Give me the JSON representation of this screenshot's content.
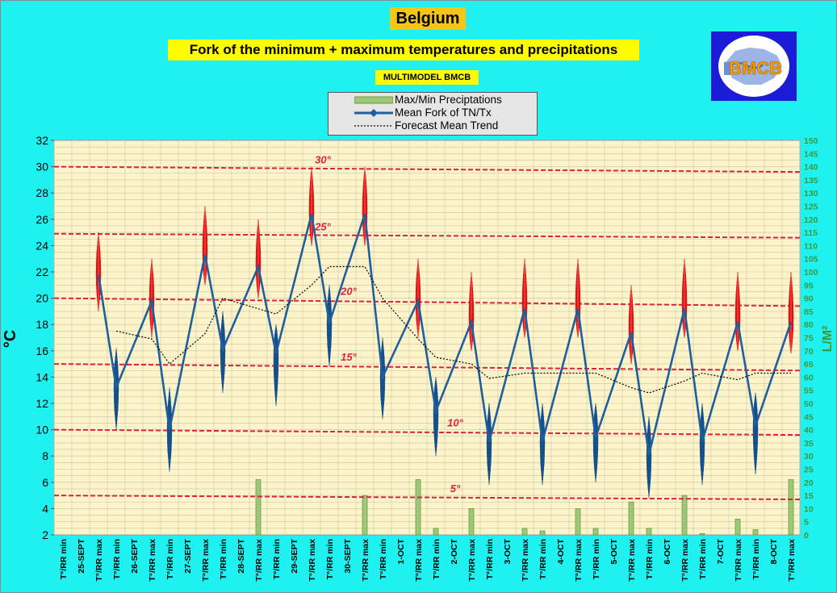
{
  "title": "Belgium",
  "subtitle": "Fork of the minimum + maximum temperatures and precipitations",
  "model_label": "MULTIMODEL BMCB",
  "logo_text": "BMCB",
  "legend": {
    "precip": "Max/Min Preciptations",
    "mean": "Mean Fork of TN/Tx",
    "trend": "Forecast Mean Trend"
  },
  "colors": {
    "background": "#1ff0f0",
    "plot_area": "#fdf5c9",
    "mean_line": "#1f5f9e",
    "fork_max": "#e01010",
    "fork_min": "#14508c",
    "threshold": "#e02040",
    "precip_bar": "#9fc77a",
    "right_axis": "#3c9a3c"
  },
  "chart_data": {
    "type": "line",
    "ylabel": "°C",
    "ylabel_right": "L/M²",
    "ylim": [
      2,
      32
    ],
    "yticks": [
      2,
      4,
      6,
      8,
      10,
      12,
      14,
      16,
      18,
      20,
      22,
      24,
      26,
      28,
      30,
      32
    ],
    "y2lim": [
      0,
      150
    ],
    "y2ticks": [
      0,
      5,
      10,
      15,
      20,
      25,
      30,
      35,
      40,
      45,
      50,
      55,
      60,
      65,
      70,
      75,
      80,
      85,
      90,
      95,
      100,
      105,
      110,
      115,
      120,
      125,
      130,
      135,
      140,
      145,
      150
    ],
    "x_labels": [
      "T°/RR min",
      "25-SEPT",
      "T°/RR max",
      "T°/RR min",
      "26-SEPT",
      "T°/RR max",
      "T°/RR min",
      "27-SEPT",
      "T°/RR max",
      "T°/RR min",
      "28-SEPT",
      "T°/RR max",
      "T°/RR min",
      "29-SEPT",
      "T°/RR max",
      "T°/RR min",
      "30-SEPT",
      "T°/RR max",
      "T°/RR min",
      "1-OCT",
      "T°/RR max",
      "T°/RR min",
      "2-OCT",
      "T°/RR max",
      "T°/RR min",
      "3-OCT",
      "T°/RR max",
      "T°/RR min",
      "4-OCT",
      "T°/RR max",
      "T°/RR min",
      "5-OCT",
      "T°/RR max",
      "T°/RR min",
      "6-OCT",
      "T°/RR max",
      "T°/RR min",
      "7-OCT",
      "T°/RR max",
      "T°/RR min",
      "8-OCT",
      "T°/RR max"
    ],
    "thresholds": [
      {
        "label": "30°",
        "y_start": 30.0,
        "y_end": 29.6
      },
      {
        "label": "25°",
        "y_start": 24.9,
        "y_end": 24.6
      },
      {
        "label": "20°",
        "y_start": 20.0,
        "y_end": 19.4
      },
      {
        "label": "15°",
        "y_start": 15.0,
        "y_end": 14.5
      },
      {
        "label": "10°",
        "y_start": 10.0,
        "y_end": 9.6
      },
      {
        "label": "5°",
        "y_start": 5.0,
        "y_end": 4.7
      }
    ],
    "series": [
      {
        "name": "Mean Fork of TN/Tx",
        "type": "line",
        "values": [
          null,
          null,
          21.8,
          13.2,
          null,
          19.8,
          10.0,
          null,
          23.3,
          16.1,
          null,
          22.4,
          15.8,
          null,
          26.4,
          18.1,
          null,
          26.4,
          14.0,
          null,
          19.8,
          11.4,
          null,
          18.2,
          9.1,
          null,
          19.2,
          9.1,
          null,
          19.2,
          9.4,
          null,
          17.4,
          8.1,
          null,
          19.2,
          9.1,
          null,
          18.2,
          10.3,
          null,
          18.2
        ]
      },
      {
        "name": "Fork low",
        "type": "fork",
        "values": [
          null,
          null,
          19.0,
          10.0,
          null,
          17.0,
          6.8,
          null,
          21.0,
          12.8,
          null,
          20.0,
          11.8,
          null,
          24.0,
          14.8,
          null,
          24.0,
          10.8,
          null,
          17.0,
          8.0,
          null,
          16.0,
          5.8,
          null,
          17.0,
          5.8,
          null,
          17.0,
          6.0,
          null,
          15.0,
          4.8,
          null,
          17.0,
          5.8,
          null,
          16.0,
          6.6,
          null,
          15.8
        ]
      },
      {
        "name": "Fork high",
        "type": "fork",
        "values": [
          null,
          null,
          25.0,
          16.2,
          null,
          23.0,
          13.2,
          null,
          27.0,
          19.0,
          null,
          26.0,
          18.0,
          null,
          30.0,
          21.0,
          null,
          30.0,
          17.0,
          null,
          23.0,
          14.0,
          null,
          22.0,
          12.0,
          null,
          23.0,
          12.0,
          null,
          23.0,
          12.0,
          null,
          21.0,
          11.0,
          null,
          23.0,
          12.0,
          null,
          22.0,
          12.8,
          null,
          22.0
        ]
      },
      {
        "name": "Forecast Mean Trend",
        "type": "line",
        "values": [
          null,
          null,
          null,
          17.5,
          null,
          16.9,
          15.0,
          null,
          17.3,
          20.0,
          null,
          19.2,
          18.8,
          null,
          21.0,
          22.4,
          null,
          22.4,
          20.0,
          null,
          16.9,
          15.5,
          null,
          15.0,
          13.9,
          null,
          14.3,
          14.3,
          null,
          14.3,
          14.3,
          null,
          13.2,
          12.8,
          null,
          13.7,
          14.3,
          null,
          13.8,
          14.3,
          null,
          14.3
        ]
      },
      {
        "name": "Max/Min Preciptations",
        "type": "bar",
        "axis": "right",
        "values": [
          0,
          null,
          0,
          0,
          null,
          0,
          0,
          null,
          0,
          0,
          null,
          21.0,
          0,
          null,
          0,
          0,
          null,
          15.0,
          0,
          null,
          21.0,
          2.5,
          null,
          10.0,
          0,
          null,
          2.5,
          1.5,
          null,
          10.0,
          2.5,
          null,
          12.5,
          2.5,
          null,
          15.0,
          0.5,
          null,
          6.0,
          2.0,
          null,
          21.0
        ]
      }
    ],
    "grid": true
  }
}
